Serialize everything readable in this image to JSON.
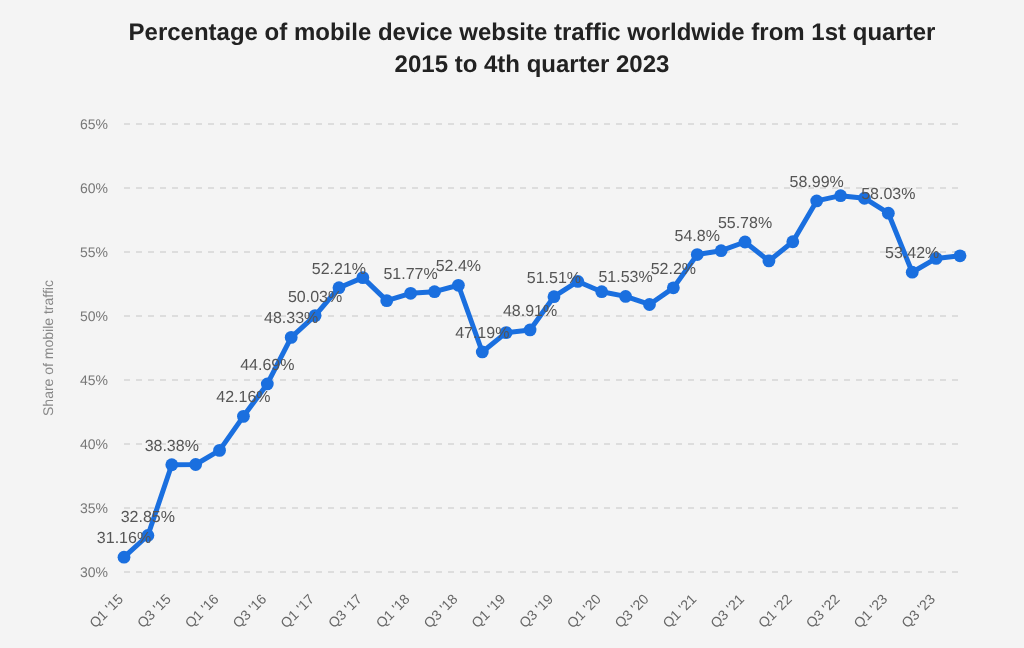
{
  "chart_data": {
    "type": "line",
    "title": "Percentage of mobile device website traffic worldwide from 1st quarter 2015 to 4th quarter 2023",
    "ylabel": "Share of mobile traffic",
    "categories": [
      "Q1 '15",
      null,
      "Q3 '15",
      null,
      "Q1 '16",
      null,
      "Q3 '16",
      null,
      "Q1 '17",
      null,
      "Q3 '17",
      null,
      "Q1 '18",
      null,
      "Q3 '18",
      null,
      "Q1 '19",
      null,
      "Q3 '19",
      null,
      "Q1 '20",
      null,
      "Q3 '20",
      null,
      "Q1 '21",
      null,
      "Q3 '21",
      null,
      "Q1 '22",
      null,
      "Q3 '22",
      null,
      "Q1 '23",
      null,
      "Q3 '23",
      null
    ],
    "series": [
      {
        "color": "#1a6fdf",
        "values": [
          31.16,
          32.85,
          38.38,
          38.4,
          39.5,
          42.16,
          44.69,
          48.33,
          50.03,
          52.21,
          53.0,
          51.2,
          51.77,
          51.9,
          52.4,
          47.19,
          48.7,
          48.91,
          51.51,
          52.7,
          51.9,
          51.53,
          50.9,
          52.2,
          54.8,
          55.1,
          55.78,
          54.3,
          55.8,
          58.99,
          59.4,
          59.2,
          58.03,
          53.42,
          54.5,
          54.7
        ],
        "value_labels": [
          "31.16%",
          "32.85%",
          "38.38%",
          null,
          null,
          "42.16%",
          "44.69%",
          "48.33%",
          "50.03%",
          "52.21%",
          null,
          null,
          "51.77%",
          null,
          "52.4%",
          "47.19%",
          null,
          "48.91%",
          "51.51%",
          null,
          null,
          "51.53%",
          null,
          "52.2%",
          "54.8%",
          null,
          "55.78%",
          null,
          null,
          "58.99%",
          null,
          null,
          "58.03%",
          "53.42%",
          null,
          null
        ]
      }
    ],
    "ylim": [
      30,
      65
    ],
    "yticks": [
      {
        "value": 30,
        "label": "30%"
      },
      {
        "value": 35,
        "label": "35%"
      },
      {
        "value": 40,
        "label": "40%"
      },
      {
        "value": 45,
        "label": "45%"
      },
      {
        "value": 50,
        "label": "50%"
      },
      {
        "value": 55,
        "label": "55%"
      },
      {
        "value": 60,
        "label": "60%"
      },
      {
        "value": 65,
        "label": "65%"
      }
    ],
    "grid": "y",
    "marker": "circle",
    "line_style": "solid"
  }
}
